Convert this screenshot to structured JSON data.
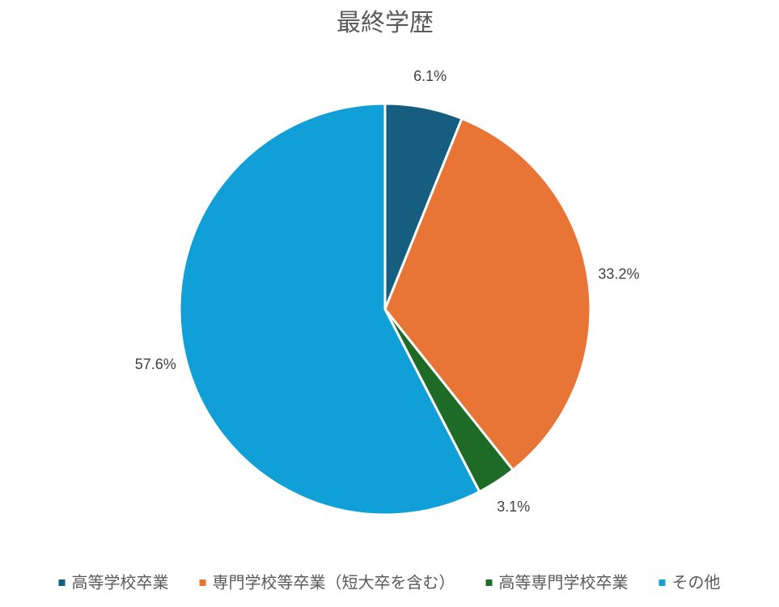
{
  "chart_data": {
    "type": "pie",
    "title": "最終学歴",
    "categories": [
      "高等学校卒業",
      "専門学校等卒業（短大卒を含む）",
      "高等専門学校卒業",
      "その他"
    ],
    "values": [
      6.1,
      33.2,
      3.1,
      57.6
    ],
    "value_labels": [
      "6.1%",
      "33.2%",
      "3.1%",
      "57.6%"
    ],
    "colors": [
      "#155e80",
      "#e87435",
      "#1e6b28",
      "#109fd6"
    ],
    "legend": "bottom"
  }
}
